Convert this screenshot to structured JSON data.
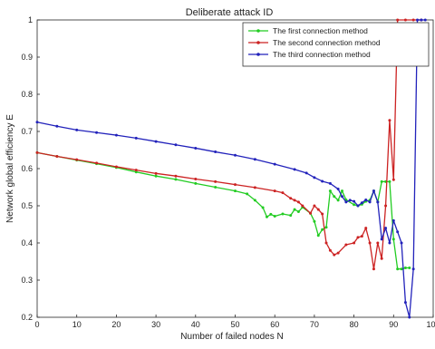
{
  "chart_data": {
    "type": "line",
    "title": "Deliberate attack ID",
    "xlabel": "Number of failed nodes N",
    "ylabel": "Network global efficiency E",
    "xlim": [
      0,
      100
    ],
    "ylim": [
      0.2,
      1
    ],
    "x_ticks": [
      0,
      10,
      20,
      30,
      40,
      50,
      60,
      70,
      80,
      90,
      100
    ],
    "x_tick_labels": [
      "0",
      "10",
      "20",
      "30",
      "40",
      "50",
      "60",
      "70",
      "80",
      "90",
      "100"
    ],
    "y_ticks": [
      0.2,
      0.3,
      0.4,
      0.5,
      0.6,
      0.7,
      0.8,
      0.9,
      1
    ],
    "y_tick_labels": [
      "0.2",
      "0.3",
      "0.4",
      "0.5",
      "0.6",
      "0.7",
      "0.8",
      "0.9",
      "1"
    ],
    "grid": false,
    "legend_position": "top-right",
    "series": [
      {
        "name": "The first connection method",
        "color": "#22cc22",
        "marker": "point",
        "points": [
          [
            0,
            0.643
          ],
          [
            5,
            0.633
          ],
          [
            10,
            0.623
          ],
          [
            15,
            0.613
          ],
          [
            20,
            0.603
          ],
          [
            25,
            0.591
          ],
          [
            30,
            0.58
          ],
          [
            35,
            0.571
          ],
          [
            40,
            0.56
          ],
          [
            45,
            0.55
          ],
          [
            50,
            0.54
          ],
          [
            53,
            0.532
          ],
          [
            55,
            0.515
          ],
          [
            57,
            0.495
          ],
          [
            58,
            0.47
          ],
          [
            59,
            0.477
          ],
          [
            60,
            0.472
          ],
          [
            62,
            0.478
          ],
          [
            64,
            0.474
          ],
          [
            65,
            0.49
          ],
          [
            66,
            0.484
          ],
          [
            67,
            0.496
          ],
          [
            69,
            0.48
          ],
          [
            70,
            0.458
          ],
          [
            71,
            0.42
          ],
          [
            72,
            0.436
          ],
          [
            73,
            0.442
          ],
          [
            74,
            0.54
          ],
          [
            75,
            0.525
          ],
          [
            76,
            0.515
          ],
          [
            77,
            0.54
          ],
          [
            78,
            0.516
          ],
          [
            80,
            0.503
          ],
          [
            81,
            0.5
          ],
          [
            82,
            0.504
          ],
          [
            83,
            0.512
          ],
          [
            84,
            0.515
          ],
          [
            85,
            0.54
          ],
          [
            86,
            0.51
          ],
          [
            87,
            0.565
          ],
          [
            88,
            0.565
          ],
          [
            89,
            0.565
          ],
          [
            90,
            0.41
          ],
          [
            91,
            0.33
          ],
          [
            92,
            0.33
          ],
          [
            93,
            0.333
          ],
          [
            94,
            0.333
          ]
        ]
      },
      {
        "name": "The second connection method",
        "color": "#cc2222",
        "marker": "point",
        "points": [
          [
            0,
            0.643
          ],
          [
            5,
            0.633
          ],
          [
            10,
            0.624
          ],
          [
            15,
            0.615
          ],
          [
            20,
            0.605
          ],
          [
            25,
            0.596
          ],
          [
            30,
            0.587
          ],
          [
            35,
            0.58
          ],
          [
            40,
            0.572
          ],
          [
            45,
            0.565
          ],
          [
            50,
            0.557
          ],
          [
            55,
            0.549
          ],
          [
            60,
            0.54
          ],
          [
            62,
            0.535
          ],
          [
            64,
            0.52
          ],
          [
            65,
            0.515
          ],
          [
            66,
            0.51
          ],
          [
            67,
            0.5
          ],
          [
            69,
            0.48
          ],
          [
            70,
            0.5
          ],
          [
            71,
            0.49
          ],
          [
            72,
            0.478
          ],
          [
            73,
            0.4
          ],
          [
            74,
            0.38
          ],
          [
            75,
            0.368
          ],
          [
            76,
            0.373
          ],
          [
            78,
            0.395
          ],
          [
            80,
            0.4
          ],
          [
            81,
            0.415
          ],
          [
            82,
            0.418
          ],
          [
            83,
            0.44
          ],
          [
            84,
            0.4
          ],
          [
            85,
            0.33
          ],
          [
            86,
            0.4
          ],
          [
            87,
            0.358
          ],
          [
            88,
            0.5
          ],
          [
            89,
            0.73
          ],
          [
            90,
            0.57
          ],
          [
            91,
            1
          ],
          [
            93,
            1
          ],
          [
            95,
            1
          ],
          [
            97,
            1
          ]
        ]
      },
      {
        "name": "The third connection method",
        "color": "#2222bb",
        "marker": "point",
        "points": [
          [
            0,
            0.725
          ],
          [
            5,
            0.714
          ],
          [
            10,
            0.704
          ],
          [
            15,
            0.697
          ],
          [
            20,
            0.69
          ],
          [
            25,
            0.682
          ],
          [
            30,
            0.673
          ],
          [
            35,
            0.664
          ],
          [
            40,
            0.655
          ],
          [
            45,
            0.645
          ],
          [
            50,
            0.636
          ],
          [
            55,
            0.625
          ],
          [
            60,
            0.612
          ],
          [
            65,
            0.598
          ],
          [
            68,
            0.588
          ],
          [
            70,
            0.576
          ],
          [
            72,
            0.566
          ],
          [
            74,
            0.56
          ],
          [
            76,
            0.545
          ],
          [
            77,
            0.525
          ],
          [
            78,
            0.51
          ],
          [
            79,
            0.515
          ],
          [
            80,
            0.512
          ],
          [
            81,
            0.5
          ],
          [
            82,
            0.508
          ],
          [
            83,
            0.516
          ],
          [
            84,
            0.51
          ],
          [
            85,
            0.54
          ],
          [
            86,
            0.51
          ],
          [
            87,
            0.41
          ],
          [
            88,
            0.44
          ],
          [
            89,
            0.4
          ],
          [
            90,
            0.46
          ],
          [
            91,
            0.43
          ],
          [
            92,
            0.4
          ],
          [
            93,
            0.24
          ],
          [
            94,
            0.2
          ],
          [
            95,
            0.33
          ],
          [
            96,
            1
          ],
          [
            97,
            1
          ],
          [
            98,
            1
          ]
        ]
      }
    ]
  }
}
